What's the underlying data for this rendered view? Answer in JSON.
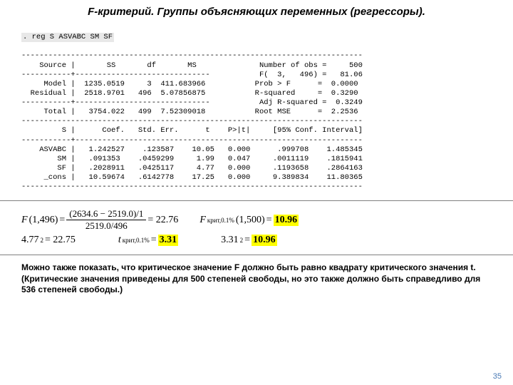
{
  "title": "F-критерий. Группы объясняющих переменных (регрессоры).",
  "stata": {
    "cmd": ". reg S ASVABC SM SF",
    "hr_full": "----------------------------------------------------------------------------",
    "src_hdr": "    Source |       SS       df       MS              Number of obs =     500",
    "div_left": "-----------+------------------------------           F(  3,   496) =   81.06",
    "model": "     Model |  1235.0519     3  411.683966           Prob > F      =  0.0000",
    "resid": "  Residual |  2518.9701   496  5.07856875           R-squared     =  0.3290",
    "div2": "-----------+------------------------------           Adj R-squared =  0.3249",
    "total": "     Total |   3754.022   499  7.52309018           Root MSE      =  2.2536",
    "coef_hdr": "         S |      Coef.   Std. Err.      t    P>|t|     [95% Conf. Interval]",
    "div3": "-----------+----------------------------------------------------------------",
    "asvabc": "    ASVABC |   1.242527    .123587    10.05   0.000      .999708    1.485345",
    "sm": "        SM |   .091353    .0459299     1.99   0.047     .0011119    .1815941",
    "sf": "        SF |   .2028911   .0425117     4.77   0.000     .1193658    .2864163",
    "cons": "     _cons |   10.59674   .6142778    17.25   0.000     9.389834    11.80365"
  },
  "formulas": {
    "f_left_pre": "F",
    "f_args": "(1,496)",
    "eq": " = ",
    "num1": "(2634.6 − 2519.0)/1",
    "den1": "2519.0/496",
    "eq_val1": " = 22.76",
    "f_crit_pre": "F",
    "f_crit_sub": "крит,0.1%",
    "f_crit_args": "(1,500)",
    "f_crit_val": "10.96",
    "row2_a": "4.77",
    "row2_a_exp": "2",
    "row2_a_val": " = 22.75",
    "t_crit_pre": "t",
    "t_crit_sub": "крит,0.1%",
    "t_crit_val": "3.31",
    "row2_c": "3.31",
    "row2_c_exp": "2",
    "row2_c_val": "10.96"
  },
  "footer": "Можно также показать, что критическое значение F должно быть равно квадрату критического значения t. (Критические значения приведены для 500 степеней свободы, но это также должно быть справедливо для 536 степеней свободы.)",
  "page_num": "35"
}
